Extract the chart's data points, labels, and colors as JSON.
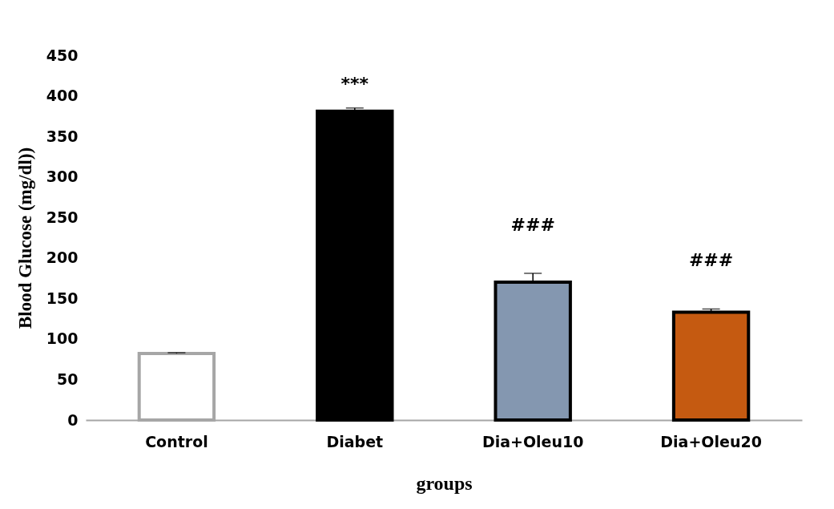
{
  "chart_data": {
    "type": "bar",
    "categories": [
      "Control",
      "Diabet",
      "Dia+Oleu10",
      "Dia+Oleu20"
    ],
    "values": [
      82,
      381,
      170,
      133
    ],
    "colors": [
      "#ffffff",
      "#000000",
      "#8497b0",
      "#c55a11"
    ],
    "errors": [
      [
        82,
        83
      ],
      [
        381,
        385
      ],
      [
        170,
        181
      ],
      [
        133,
        137
      ]
    ],
    "xlabel": "groups",
    "ylabel": "Blood Glucose (mg/dl))",
    "ylim": [
      0,
      450
    ],
    "yticks": [
      0,
      50,
      100,
      150,
      200,
      250,
      300,
      350,
      400,
      450
    ],
    "grid": false,
    "annotations": [
      "***",
      "###",
      "###"
    ]
  }
}
